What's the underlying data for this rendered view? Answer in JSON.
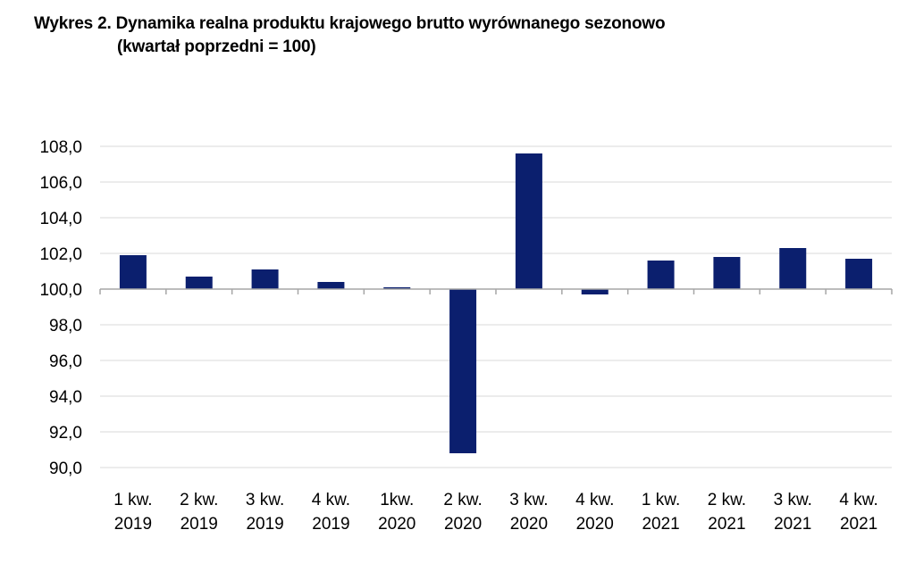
{
  "chart_data": {
    "type": "bar",
    "title_line1": "Wykres 2. Dynamika realna produktu krajowego brutto wyrównanego sezonowo",
    "title_line2": "(kwartał poprzedni = 100)",
    "xlabel": "",
    "ylabel": "",
    "categories": [
      [
        "1 kw.",
        "2019"
      ],
      [
        "2 kw.",
        "2019"
      ],
      [
        "3 kw.",
        "2019"
      ],
      [
        "4 kw.",
        "2019"
      ],
      [
        "1kw.",
        "2020"
      ],
      [
        "2 kw.",
        "2020"
      ],
      [
        "3 kw.",
        "2020"
      ],
      [
        "4 kw.",
        "2020"
      ],
      [
        "1 kw.",
        "2021"
      ],
      [
        "2 kw.",
        "2021"
      ],
      [
        "3 kw.",
        "2021"
      ],
      [
        "4 kw.",
        "2021"
      ]
    ],
    "values": [
      101.9,
      100.7,
      101.1,
      100.4,
      100.1,
      90.8,
      107.6,
      99.7,
      101.6,
      101.8,
      102.3,
      101.7
    ],
    "baseline": 100,
    "ylim": [
      90,
      108
    ],
    "yticks": [
      108,
      106,
      104,
      102,
      100,
      98,
      96,
      94,
      92,
      90
    ],
    "ytick_labels": [
      "108,0",
      "106,0",
      "104,0",
      "102,0",
      "100,0",
      "98,0",
      "96,0",
      "94,0",
      "92,0",
      "90,0"
    ],
    "grid": true,
    "legend": "none",
    "bar_color": "#0b1f6e",
    "grid_color": "#d9d9d9",
    "axis_color": "#a6a6a6"
  }
}
